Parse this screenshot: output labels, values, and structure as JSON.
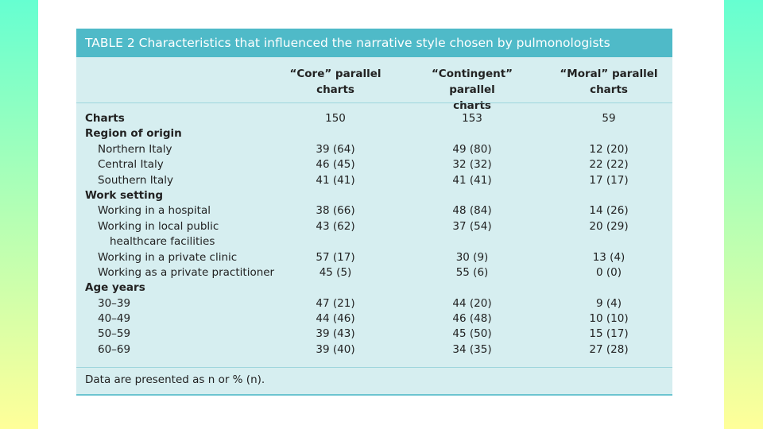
{
  "table": {
    "title": "TABLE 2 Characteristics that influenced the narrative style chosen by pulmonologists",
    "columns": [
      "“Core” parallel charts",
      "“Contingent” parallel charts",
      "“Moral” parallel charts"
    ],
    "columns_line1": [
      "“Core” parallel",
      "“Contingent” parallel",
      "“Moral” parallel"
    ],
    "columns_line2": [
      "charts",
      "charts",
      "charts"
    ],
    "rows": [
      {
        "label": "Charts",
        "type": "section",
        "values": [
          "150",
          "153",
          "59"
        ]
      },
      {
        "label": "Region of origin",
        "type": "section",
        "values": [
          "",
          "",
          ""
        ]
      },
      {
        "label": "Northern Italy",
        "type": "indent",
        "values": [
          "39 (64)",
          "49 (80)",
          "12 (20)"
        ]
      },
      {
        "label": "Central Italy",
        "type": "indent",
        "values": [
          "46 (45)",
          "32 (32)",
          "22 (22)"
        ]
      },
      {
        "label": "Southern Italy",
        "type": "indent",
        "values": [
          "41 (41)",
          "41 (41)",
          "17 (17)"
        ]
      },
      {
        "label": "Work setting",
        "type": "section",
        "values": [
          "",
          "",
          ""
        ]
      },
      {
        "label": "Working in a hospital",
        "type": "indent",
        "values": [
          "38 (66)",
          "48 (84)",
          "14 (26)"
        ]
      },
      {
        "label": "Working in local public",
        "type": "indent",
        "values": [
          "43 (62)",
          "37 (54)",
          "20 (29)"
        ]
      },
      {
        "label": "healthcare facilities",
        "type": "indent2",
        "values": [
          "",
          "",
          ""
        ]
      },
      {
        "label": "Working in a private clinic",
        "type": "indent",
        "values": [
          "57 (17)",
          "30 (9)",
          "13 (4)"
        ]
      },
      {
        "label": "Working as a private practitioner",
        "type": "indent",
        "values": [
          "45 (5)",
          "55 (6)",
          "0 (0)"
        ]
      },
      {
        "label": "Age years",
        "type": "section",
        "values": [
          "",
          "",
          ""
        ]
      },
      {
        "label": "30–39",
        "type": "indent",
        "values": [
          "47 (21)",
          "44 (20)",
          "9 (4)"
        ]
      },
      {
        "label": "40–49",
        "type": "indent",
        "values": [
          "44 (46)",
          "46 (48)",
          "10 (10)"
        ]
      },
      {
        "label": "50–59",
        "type": "indent",
        "values": [
          "39 (43)",
          "45 (50)",
          "15 (17)"
        ]
      },
      {
        "label": "60–69",
        "type": "indent",
        "values": [
          "39 (40)",
          "34 (35)",
          "27 (28)"
        ]
      }
    ],
    "footnote": "Data are presented as n or % (n)."
  },
  "colors": {
    "title_bar": "#4fbac8",
    "table_bg": "#d6eef0",
    "rule": "#9fd6dd"
  }
}
